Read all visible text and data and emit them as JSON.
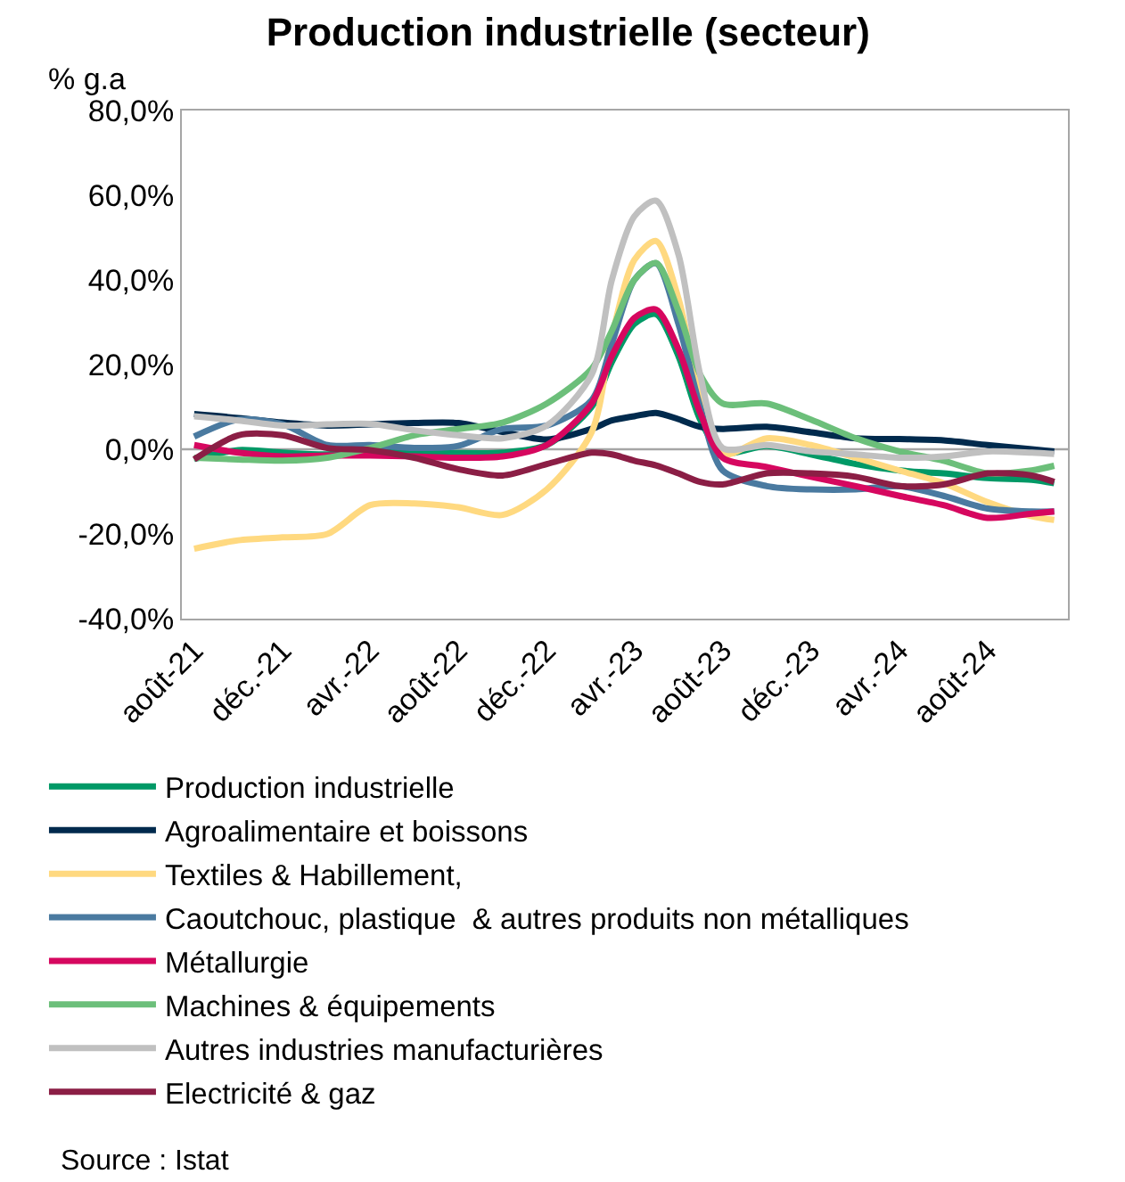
{
  "chart_data": {
    "type": "line",
    "title": "Production industrielle (secteur)",
    "ylabel": "% g.a",
    "x": [
      "2021-08",
      "2021-10",
      "2021-12",
      "2022-02",
      "2022-04",
      "2022-06",
      "2022-08",
      "2022-10",
      "2022-12",
      "2023-02",
      "2023-03",
      "2023-04",
      "2023-05",
      "2023-06",
      "2023-07",
      "2023-08",
      "2023-10",
      "2023-12",
      "2024-02",
      "2024-04",
      "2024-06",
      "2024-08",
      "2024-10",
      "2024-11"
    ],
    "xlim": [
      "2021-07-15",
      "2024-11-20"
    ],
    "xticks": [
      {
        "value": "2021-08-01",
        "label": "août-21"
      },
      {
        "value": "2021-12-01",
        "label": "déc.-21"
      },
      {
        "value": "2022-04-01",
        "label": "avr.-22"
      },
      {
        "value": "2022-08-01",
        "label": "août-22"
      },
      {
        "value": "2022-12-01",
        "label": "déc.-22"
      },
      {
        "value": "2023-04-01",
        "label": "avr.-23"
      },
      {
        "value": "2023-08-01",
        "label": "août-23"
      },
      {
        "value": "2023-12-01",
        "label": "déc.-23"
      },
      {
        "value": "2024-04-01",
        "label": "avr.-24"
      },
      {
        "value": "2024-08-01",
        "label": "août-24"
      }
    ],
    "ylim": [
      -40,
      80
    ],
    "yticks": [
      {
        "value": -40,
        "label": "-40,0%"
      },
      {
        "value": -20,
        "label": "-20,0%"
      },
      {
        "value": 0,
        "label": "0,0%"
      },
      {
        "value": 20,
        "label": "20,0%"
      },
      {
        "value": 40,
        "label": "40,0%"
      },
      {
        "value": 60,
        "label": "60,0%"
      },
      {
        "value": 80,
        "label": "80,0%"
      }
    ],
    "grid": false,
    "legend": "bottom",
    "marker": "none",
    "line_style": "solid",
    "ref_lines": [
      {
        "axis": "y",
        "value": 0,
        "color": "#a6a6a6"
      }
    ],
    "series": [
      {
        "name": "Production industrielle",
        "color": "#009966",
        "values": [
          -2.3,
          -0.2,
          -0.8,
          -1.2,
          -0.2,
          -0.5,
          -0.9,
          -0.8,
          1,
          10,
          20.6,
          29.6,
          31.9,
          22,
          7,
          -0.8,
          0.8,
          -1.2,
          -3.5,
          -5,
          -5.7,
          -6.8,
          -7.2,
          -8
        ]
      },
      {
        "name": "Agroalimentaire et boissons",
        "color": "#002a4d",
        "values": [
          8.3,
          7.4,
          6.3,
          5.6,
          5.9,
          6.2,
          6.2,
          4.1,
          2.3,
          4.8,
          6.8,
          7.8,
          8.6,
          7.1,
          5.3,
          4.8,
          5.3,
          4,
          2.6,
          2.4,
          2.1,
          1,
          0,
          -0.5
        ]
      },
      {
        "name": "Textiles & Habillement,",
        "color": "#ffd980",
        "values": [
          -23.5,
          -21.5,
          -20.8,
          -20,
          -13.2,
          -12.8,
          -13.7,
          -15.5,
          -9.5,
          4,
          26.6,
          44.7,
          49.2,
          35.6,
          13,
          -1.2,
          2.6,
          1,
          -2,
          -5,
          -8,
          -12.5,
          -15.8,
          -16.7
        ]
      },
      {
        "name": "Caoutchouc, plastique  & autres produits non métalliques",
        "color": "#4a7aa0",
        "values": [
          3,
          7,
          5.9,
          1,
          1,
          0.3,
          0.8,
          4.8,
          5.6,
          11.6,
          25,
          40,
          43.9,
          29.6,
          10,
          -5,
          -8.7,
          -9.5,
          -9.5,
          -8.7,
          -11,
          -14,
          -14.7,
          -14.7
        ]
      },
      {
        "name": "Métallurgie",
        "color": "#d6075f",
        "values": [
          1,
          -0.8,
          -1.7,
          -1.5,
          -1.5,
          -1.7,
          -2,
          -1.7,
          1,
          10.8,
          22,
          31,
          33,
          23.6,
          8.6,
          -2,
          -4.2,
          -6.5,
          -8.7,
          -11,
          -13.2,
          -16.2,
          -15.2,
          -14.7
        ]
      },
      {
        "name": "Machines & équipements",
        "color": "#6cbf7a",
        "values": [
          -2,
          -2.4,
          -2.7,
          -2,
          0.3,
          3.3,
          4.8,
          6.3,
          10.8,
          19,
          28,
          40,
          44,
          32.6,
          17.6,
          10.8,
          10.8,
          7,
          2.6,
          -0.5,
          -2.7,
          -5.7,
          -5,
          -3.9
        ]
      },
      {
        "name": "Autres industries manufacturières",
        "color": "#c0c0c0",
        "values": [
          7.8,
          6.8,
          5.6,
          5.9,
          6,
          4.5,
          3.3,
          2.6,
          5.6,
          17.6,
          40,
          55,
          58.7,
          46,
          17.6,
          0.3,
          1,
          -0.5,
          -1.2,
          -2,
          -1.7,
          -0.5,
          -0.8,
          -1.1
        ]
      },
      {
        "name": "Electricité & gaz",
        "color": "#8b1e45",
        "values": [
          -2.4,
          3.3,
          3.3,
          0.3,
          -0.2,
          -2,
          -4.7,
          -6.2,
          -3.5,
          -0.8,
          -1.2,
          -2.7,
          -3.8,
          -5.7,
          -7.7,
          -8.3,
          -5.7,
          -5.7,
          -6.5,
          -8.7,
          -8.3,
          -5.7,
          -6.2,
          -7.7
        ]
      }
    ],
    "annotations": [
      "Source : Istat"
    ]
  }
}
